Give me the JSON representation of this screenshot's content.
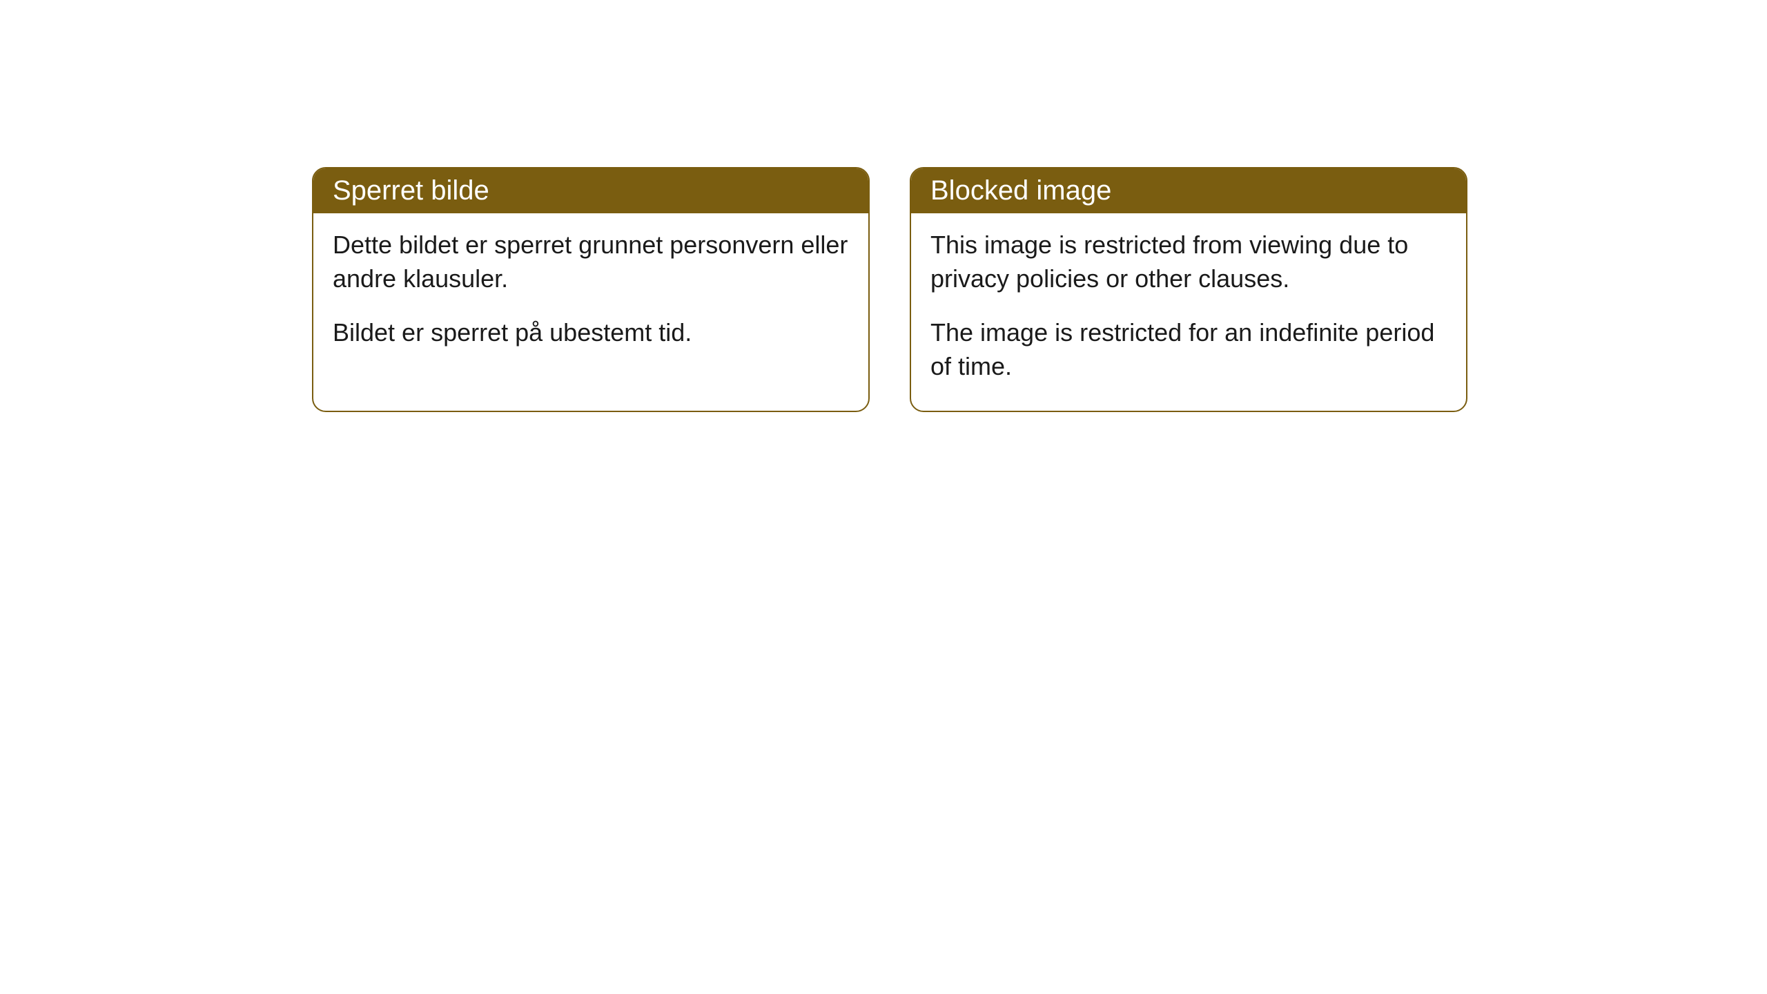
{
  "cards": [
    {
      "title": "Sperret bilde",
      "paragraph1": "Dette bildet er sperret grunnet personvern eller andre klausuler.",
      "paragraph2": "Bildet er sperret på ubestemt tid."
    },
    {
      "title": "Blocked image",
      "paragraph1": "This image is restricted from viewing due to privacy policies or other clauses.",
      "paragraph2": "The image is restricted for an indefinite period of time."
    }
  ],
  "colors": {
    "header_bg": "#7a5d10",
    "header_text": "#ffffff",
    "border": "#7a5d10",
    "body_text": "#1a1a1a",
    "page_bg": "#ffffff"
  }
}
